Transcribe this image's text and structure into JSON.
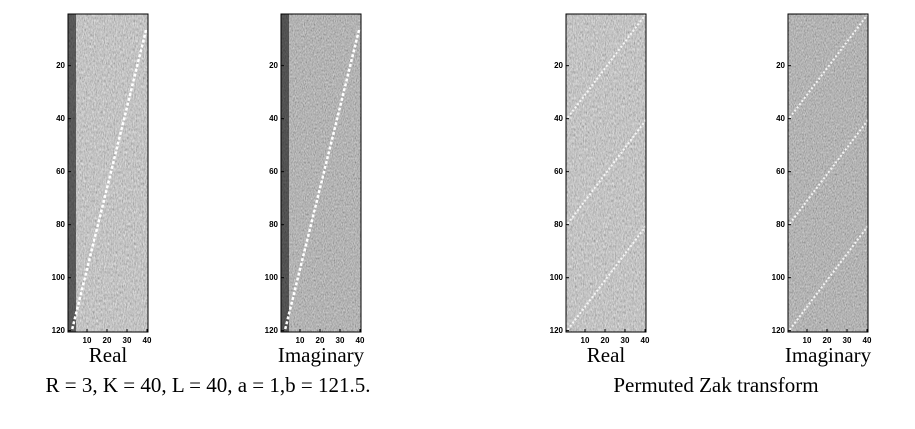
{
  "panels": [
    {
      "label": "Real",
      "xlim": [
        0.5,
        40.5
      ],
      "ylim": [
        0.5,
        120.5
      ],
      "xticks": [
        10,
        20,
        30,
        40
      ],
      "yticks": [
        20,
        40,
        60,
        80,
        100,
        120
      ]
    },
    {
      "label": "Imaginary",
      "xlim": [
        0.5,
        40.5
      ],
      "ylim": [
        0.5,
        120.5
      ],
      "xticks": [
        10,
        20,
        30,
        40
      ],
      "yticks": [
        20,
        40,
        60,
        80,
        100,
        120
      ]
    },
    {
      "label": "Real",
      "xlim": [
        0.5,
        40.5
      ],
      "ylim": [
        0.5,
        120.5
      ],
      "xticks": [
        10,
        20,
        30,
        40
      ],
      "yticks": [
        20,
        40,
        60,
        80,
        100,
        120
      ]
    },
    {
      "label": "Imaginary",
      "xlim": [
        0.5,
        40.5
      ],
      "ylim": [
        0.5,
        120.5
      ],
      "xticks": [
        10,
        20,
        30,
        40
      ],
      "yticks": [
        20,
        40,
        60,
        80,
        100,
        120
      ]
    }
  ],
  "captions": [
    "R = 3, K = 40, L = 40, a = 1,b = 121.5.",
    "Permuted Zak transform"
  ]
}
